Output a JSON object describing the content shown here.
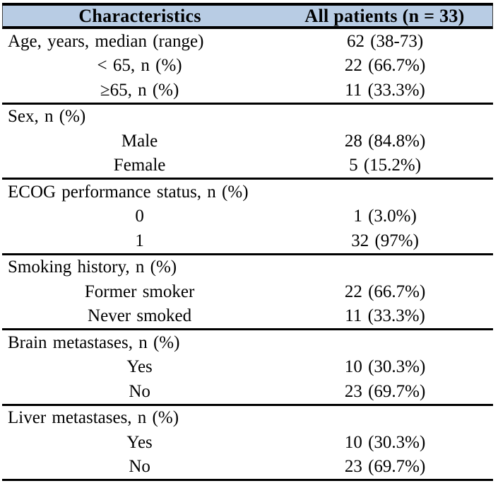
{
  "table": {
    "header": {
      "col1": "Characteristics",
      "col2": "All patients (n = 33)"
    },
    "colors": {
      "header_bg": "#b8cce4",
      "border": "#000000",
      "text": "#000000"
    },
    "sections": [
      {
        "rows": [
          {
            "label": "Age, years, median (range)",
            "value": "62 (38-73)",
            "indent": false
          },
          {
            "label": "< 65, n (%)",
            "value": "22 (66.7%)",
            "indent": true
          },
          {
            "label": "≥65, n (%)",
            "value": "11 (33.3%)",
            "indent": true
          }
        ]
      },
      {
        "rows": [
          {
            "label": "Sex, n (%)",
            "value": "",
            "indent": false
          },
          {
            "label": "Male",
            "value": "28 (84.8%)",
            "indent": true
          },
          {
            "label": "Female",
            "value": "5 (15.2%)",
            "indent": true
          }
        ]
      },
      {
        "rows": [
          {
            "label": "ECOG performance status, n (%)",
            "value": "",
            "indent": false
          },
          {
            "label": "0",
            "value": "1 (3.0%)",
            "indent": true
          },
          {
            "label": "1",
            "value": "32 (97%)",
            "indent": true
          }
        ]
      },
      {
        "rows": [
          {
            "label": "Smoking history, n (%)",
            "value": "",
            "indent": false
          },
          {
            "label": "Former smoker",
            "value": "22 (66.7%)",
            "indent": true
          },
          {
            "label": "Never smoked",
            "value": "11 (33.3%)",
            "indent": true
          }
        ]
      },
      {
        "rows": [
          {
            "label": "Brain metastases, n (%)",
            "value": "",
            "indent": false
          },
          {
            "label": "Yes",
            "value": "10 (30.3%)",
            "indent": true
          },
          {
            "label": "No",
            "value": "23 (69.7%)",
            "indent": true
          }
        ]
      },
      {
        "rows": [
          {
            "label": "Liver metastases, n (%)",
            "value": "",
            "indent": false
          },
          {
            "label": "Yes",
            "value": "10 (30.3%)",
            "indent": true
          },
          {
            "label": "No",
            "value": "23 (69.7%)",
            "indent": true
          }
        ]
      }
    ]
  }
}
